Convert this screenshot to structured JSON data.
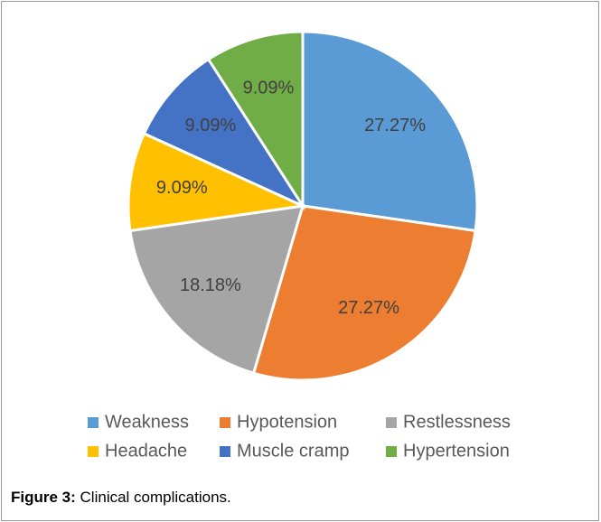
{
  "chart_data": {
    "type": "pie",
    "categories": [
      "Weakness",
      "Hypotension",
      "Restlessness",
      "Headache",
      "Muscle cramp",
      "Hypertension"
    ],
    "values": [
      27.27,
      27.27,
      18.18,
      9.09,
      9.09,
      9.09
    ],
    "value_labels": [
      "27.27%",
      "27.27%",
      "18.18%",
      "9.09%",
      "9.09%",
      "9.09%"
    ],
    "colors": [
      "#5b9bd5",
      "#ed7d31",
      "#a5a5a5",
      "#ffc000",
      "#4472c4",
      "#70ad47"
    ],
    "legend": "bottom"
  },
  "caption": {
    "label": "Figure 3:",
    "text": "Clinical complications."
  }
}
